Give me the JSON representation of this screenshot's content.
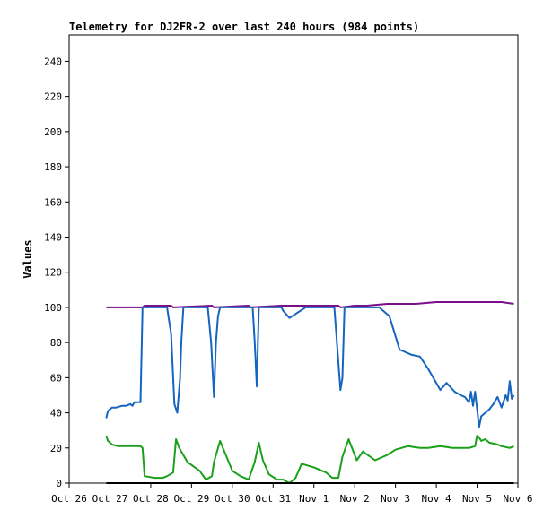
{
  "chart_data": {
    "type": "line",
    "title": "Telemetry for DJ2FR-2 over last 240 hours (984 points)",
    "xlabel": "",
    "ylabel": "Values",
    "ylim": [
      0,
      255
    ],
    "yticks": [
      0,
      20,
      40,
      60,
      80,
      100,
      120,
      140,
      160,
      180,
      200,
      220,
      240
    ],
    "x_unit": "days since Oct 26",
    "xlim": [
      0,
      11
    ],
    "xticks": [
      "Oct 26",
      "Oct 27",
      "Oct 28",
      "Oct 29",
      "Oct 30",
      "Oct 31",
      "Nov 1",
      "Nov 2",
      "Nov 3",
      "Nov 4",
      "Nov 5",
      "Nov 6"
    ],
    "grid": false,
    "legend": "none",
    "series": [
      {
        "color": "#7a0f8a",
        "x": [
          0.91,
          1.8,
          1.85,
          2.5,
          2.55,
          3.5,
          3.55,
          4.4,
          4.45,
          5.2,
          5.3,
          6.6,
          6.65,
          7.0,
          7.3,
          7.8,
          8.1,
          8.5,
          9.0,
          9.5,
          10.0,
          10.3,
          10.6,
          10.9
        ],
        "y": [
          100,
          100,
          101,
          101,
          100,
          101,
          100,
          101,
          100,
          101,
          101,
          101,
          100,
          101,
          101,
          102,
          102,
          102,
          103,
          103,
          103,
          103,
          103,
          102
        ]
      },
      {
        "color": "#1565c0",
        "x": [
          0.91,
          0.95,
          1.05,
          1.15,
          1.3,
          1.4,
          1.5,
          1.55,
          1.6,
          1.75,
          1.8,
          2.4,
          2.5,
          2.58,
          2.65,
          2.72,
          2.75,
          2.8,
          3.4,
          3.48,
          3.55,
          3.6,
          3.65,
          3.7,
          4.2,
          4.5,
          4.55,
          4.6,
          4.65,
          5.2,
          5.25,
          5.4,
          5.6,
          5.8,
          6.3,
          6.5,
          6.58,
          6.65,
          6.7,
          6.75,
          7.3,
          7.6,
          7.7,
          7.85,
          8.1,
          8.4,
          8.6,
          8.8,
          9.1,
          9.25,
          9.45,
          9.6,
          9.7,
          9.8,
          9.85,
          9.9,
          9.95,
          10.05,
          10.1,
          10.3,
          10.4,
          10.5,
          10.6,
          10.7,
          10.75,
          10.8,
          10.85,
          10.9
        ],
        "y": [
          37,
          41,
          43,
          43,
          44,
          44,
          45,
          44,
          46,
          46,
          100,
          100,
          85,
          45,
          40,
          60,
          80,
          100,
          100,
          80,
          49,
          80,
          95,
          100,
          100,
          100,
          80,
          55,
          100,
          100,
          98,
          94,
          97,
          100,
          100,
          100,
          75,
          53,
          60,
          100,
          100,
          100,
          98,
          95,
          76,
          73,
          72,
          65,
          53,
          57,
          52,
          50,
          49,
          46,
          52,
          44,
          52,
          32,
          38,
          42,
          45,
          49,
          43,
          50,
          47,
          58,
          48,
          50
        ]
      },
      {
        "color": "#1aa01a",
        "x": [
          0.91,
          0.95,
          1.05,
          1.2,
          1.4,
          1.6,
          1.75,
          1.8,
          1.85,
          2.1,
          2.3,
          2.4,
          2.55,
          2.62,
          2.7,
          2.9,
          3.2,
          3.35,
          3.5,
          3.55,
          3.7,
          4.0,
          4.2,
          4.4,
          4.55,
          4.65,
          4.75,
          4.9,
          5.1,
          5.25,
          5.4,
          5.55,
          5.7,
          6.0,
          6.3,
          6.45,
          6.6,
          6.7,
          6.85,
          6.95,
          7.05,
          7.2,
          7.5,
          7.8,
          8.0,
          8.3,
          8.6,
          8.8,
          9.1,
          9.4,
          9.8,
          9.95,
          10.0,
          10.05,
          10.1,
          10.2,
          10.3,
          10.5,
          10.6,
          10.8,
          10.9
        ],
        "y": [
          27,
          24,
          22,
          21,
          21,
          21,
          21,
          20,
          4,
          3,
          3,
          4,
          6,
          25,
          20,
          12,
          7,
          2,
          4,
          12,
          24,
          7,
          4,
          2,
          12,
          23,
          13,
          5,
          2,
          2,
          0,
          3,
          11,
          9,
          6,
          3,
          3,
          15,
          25,
          19,
          13,
          18,
          13,
          16,
          19,
          21,
          20,
          20,
          21,
          20,
          20,
          21,
          27,
          26,
          24,
          25,
          23,
          22,
          21,
          20,
          21
        ]
      },
      {
        "color": "#000000",
        "x": [
          0.91,
          10.9
        ],
        "y": [
          0,
          0
        ]
      }
    ]
  }
}
